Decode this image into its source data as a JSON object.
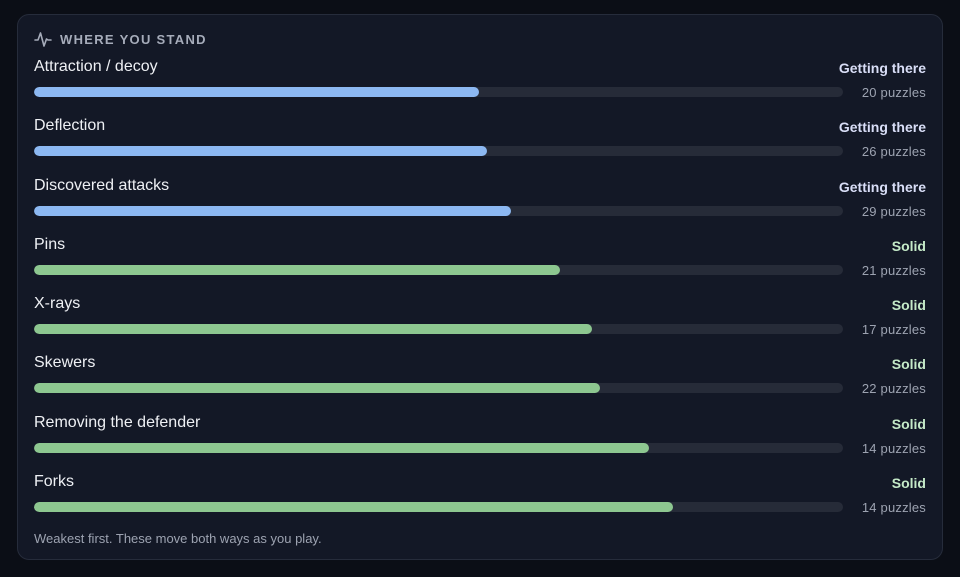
{
  "header": {
    "icon": "activity-pulse-icon",
    "title": "Where you stand"
  },
  "status_colors": {
    "Getting there": "#d9def7",
    "Solid": "#c5eac8"
  },
  "bar_colors": {
    "Getting there": "#8cb8f2",
    "Solid": "#8dc790"
  },
  "track_color": "#262b38",
  "rows": [
    {
      "label": "Attraction / decoy",
      "status": "Getting there",
      "count": "20 puzzles",
      "progress": 0.55
    },
    {
      "label": "Deflection",
      "status": "Getting there",
      "count": "26 puzzles",
      "progress": 0.56
    },
    {
      "label": "Discovered attacks",
      "status": "Getting there",
      "count": "29 puzzles",
      "progress": 0.59
    },
    {
      "label": "Pins",
      "status": "Solid",
      "count": "21 puzzles",
      "progress": 0.65
    },
    {
      "label": "X-rays",
      "status": "Solid",
      "count": "17 puzzles",
      "progress": 0.69
    },
    {
      "label": "Skewers",
      "status": "Solid",
      "count": "22 puzzles",
      "progress": 0.7
    },
    {
      "label": "Removing the defender",
      "status": "Solid",
      "count": "14 puzzles",
      "progress": 0.76
    },
    {
      "label": "Forks",
      "status": "Solid",
      "count": "14 puzzles",
      "progress": 0.79
    }
  ],
  "footer": "Weakest first. These move both ways as you play."
}
